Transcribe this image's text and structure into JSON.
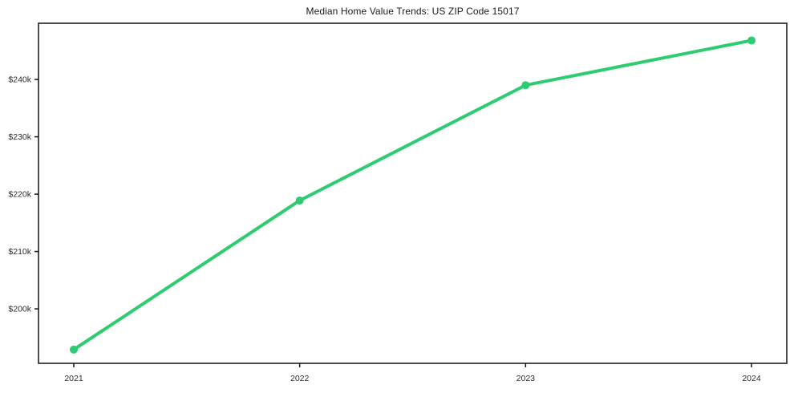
{
  "chart_data": {
    "type": "line",
    "title": "Median Home Value Trends: US ZIP Code 15017",
    "x": [
      2021,
      2022,
      2023,
      2024
    ],
    "x_tick_labels": [
      "2021",
      "2022",
      "2023",
      "2024"
    ],
    "y_tick_values": [
      200000,
      210000,
      220000,
      230000,
      240000
    ],
    "y_tick_labels": [
      "$200k",
      "$210k",
      "$220k",
      "$230k",
      "$240k"
    ],
    "series": [
      {
        "name": "Median Home Value",
        "values": [
          192900,
          218900,
          239000,
          246800
        ],
        "color": "#2ecc71"
      }
    ],
    "ylim": [
      190500,
      249800
    ],
    "grid": false,
    "legend": "none",
    "marker": "circle",
    "colors": {
      "line": "#2ecc71",
      "spine": "#111111",
      "tick_text": "#2b2b2b",
      "title_text": "#1a1a1a",
      "background": "#ffffff"
    }
  }
}
